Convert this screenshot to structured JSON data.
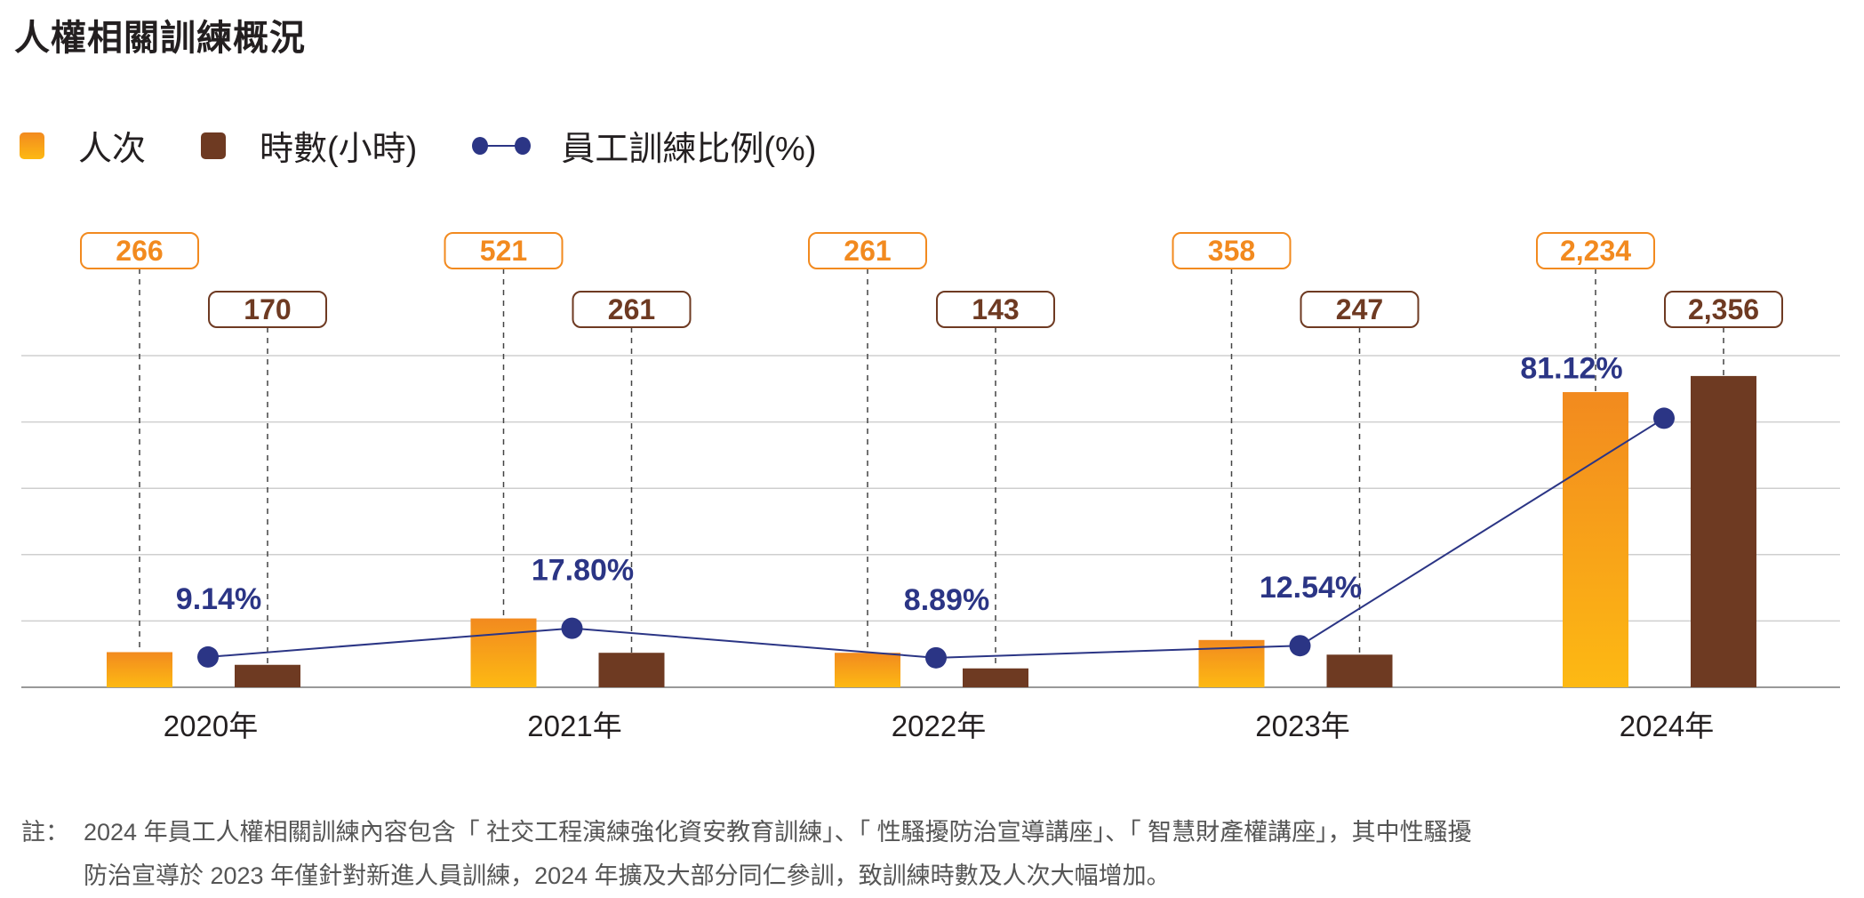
{
  "title": "人權相關訓練概況",
  "chart_data": {
    "type": "bar",
    "title": "人權相關訓練概況",
    "categories": [
      "2020年",
      "2021年",
      "2022年",
      "2023年",
      "2024年"
    ],
    "series": [
      {
        "name": "人次",
        "type": "bar",
        "color": "#F7A21B",
        "values": [
          266,
          521,
          261,
          358,
          2234
        ],
        "labels": [
          "266",
          "521",
          "261",
          "358",
          "2,234"
        ]
      },
      {
        "name": "時數(小時)",
        "type": "bar",
        "color": "#6E3A22",
        "values": [
          170,
          261,
          143,
          247,
          2356
        ],
        "labels": [
          "170",
          "261",
          "143",
          "247",
          "2,356"
        ]
      },
      {
        "name": "員工訓練比例(%)",
        "type": "line",
        "color": "#2B3585",
        "values": [
          9.14,
          17.8,
          8.89,
          12.54,
          81.12
        ],
        "labels": [
          "9.14%",
          "17.80%",
          "8.89%",
          "12.54%",
          "81.12%"
        ]
      }
    ],
    "legend": [
      "人次",
      "時數(小時)",
      "員工訓練比例(%)"
    ],
    "legend_position": "top-left",
    "ylim": [
      0,
      2500
    ],
    "grid": true
  },
  "footnote": {
    "label": "註：",
    "lines": [
      "2024 年員工人權相關訓練內容包含「 社交工程演練強化資安教育訓練」、「 性騷擾防治宣導講座」、「 智慧財產權講座」，其中性騷擾",
      "防治宣導於 2023 年僅針對新進人員訓練，2024 年擴及大部分同仁參訓，致訓練時數及人次大幅增加。"
    ]
  }
}
